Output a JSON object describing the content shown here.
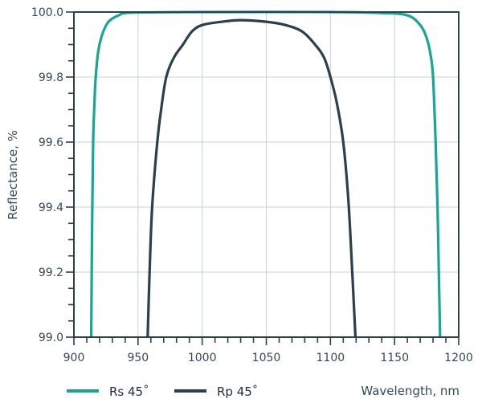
{
  "chart_data": {
    "type": "line",
    "xlabel": "Wavelength, nm",
    "ylabel": "Reflectance, %",
    "xlim": [
      900,
      1200
    ],
    "ylim": [
      99.0,
      100.0
    ],
    "xticks": [
      900,
      950,
      1000,
      1050,
      1100,
      1150,
      1200
    ],
    "xtick_labels": [
      "900",
      "950",
      "1000",
      "1050",
      "1100",
      "1150",
      "1200"
    ],
    "yticks": [
      99.0,
      99.2,
      99.4,
      99.6,
      99.8,
      100.0
    ],
    "ytick_labels": [
      "99.0",
      "99.2",
      "99.4",
      "99.6",
      "99.8",
      "100.0"
    ],
    "x_minor_step": 10,
    "y_minor_step": 0.05,
    "grid": true,
    "legend_position": "bottom-left",
    "series": [
      {
        "name": "Rs 45˚",
        "color": "#17a594",
        "x": [
          913.5,
          914.2,
          915,
          916,
          917,
          919,
          922,
          926,
          930,
          935,
          945,
          1000,
          1100,
          1140,
          1160,
          1170,
          1175,
          1178,
          1180,
          1182,
          1183.5,
          1184.5,
          1185.5
        ],
        "y": [
          99.0,
          99.35,
          99.6,
          99.72,
          99.8,
          99.88,
          99.93,
          99.965,
          99.98,
          99.99,
          99.998,
          100.0,
          100.0,
          99.997,
          99.99,
          99.96,
          99.92,
          99.87,
          99.8,
          99.6,
          99.4,
          99.2,
          99.0
        ]
      },
      {
        "name": "Rp 45˚",
        "color": "#2b3f4c",
        "x": [
          957.5,
          959,
          961,
          965,
          968,
          972,
          978,
          985,
          992,
          1000,
          1015,
          1030,
          1050,
          1065,
          1078,
          1088,
          1095,
          1100,
          1105,
          1110,
          1114,
          1117,
          1119.5
        ],
        "y": [
          99.0,
          99.2,
          99.4,
          99.6,
          99.7,
          99.8,
          99.86,
          99.9,
          99.94,
          99.96,
          99.97,
          99.975,
          99.97,
          99.96,
          99.94,
          99.9,
          99.86,
          99.8,
          99.72,
          99.6,
          99.42,
          99.2,
          99.0
        ]
      }
    ]
  },
  "colors": {
    "axis": "#2b3f4c",
    "grid": "#c8d0d4"
  }
}
